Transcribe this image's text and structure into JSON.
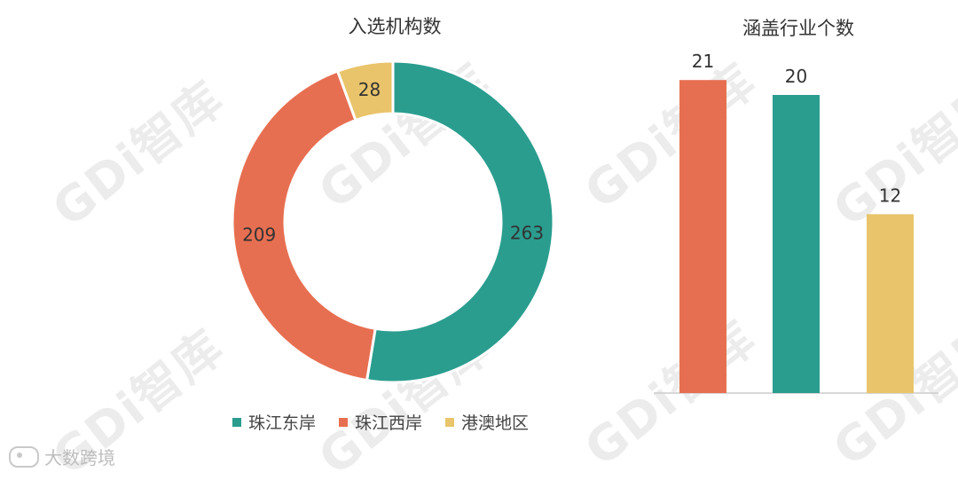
{
  "watermark": "GDi智库",
  "source_logo_text": "大数跨境",
  "colors": {
    "east": "#2a9d8f",
    "west": "#e76f51",
    "hkmo": "#e9c46a",
    "axis": "#cccccc"
  },
  "chart_data": [
    {
      "type": "pie",
      "style": "donut",
      "title": "入选机构数",
      "labels": [
        "珠江东岸",
        "珠江西岸",
        "港澳地区"
      ],
      "values": [
        263,
        209,
        28
      ],
      "legend": "bottom"
    },
    {
      "type": "bar",
      "title": "涵盖行业个数",
      "categories": [
        "珠江西岸",
        "珠江东岸",
        "港澳地区"
      ],
      "values": [
        21,
        20,
        12
      ],
      "ylim": [
        0,
        25
      ],
      "grid": false,
      "xlabel": "",
      "ylabel": ""
    }
  ]
}
